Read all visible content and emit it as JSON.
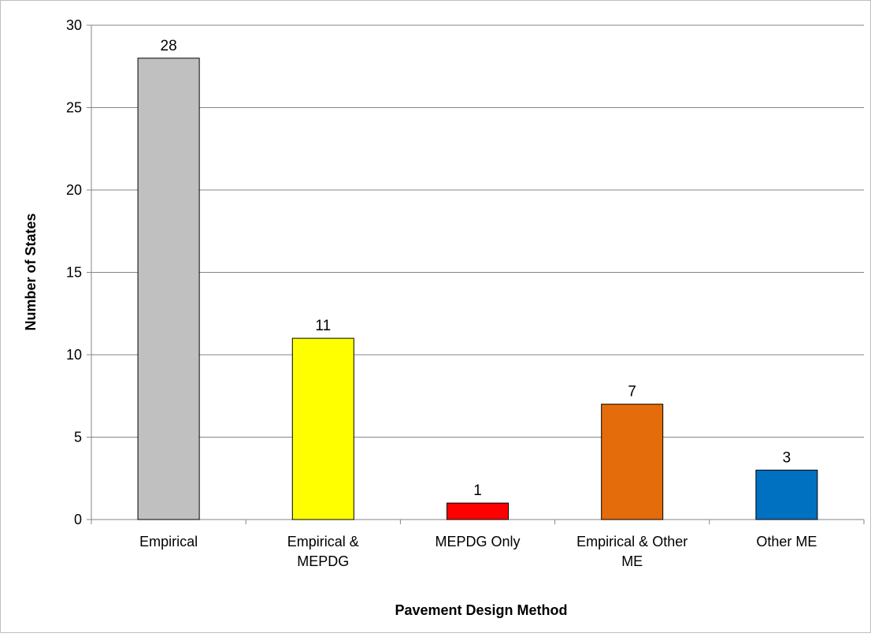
{
  "chart_data": {
    "type": "bar",
    "title": "",
    "xlabel": "Pavement Design Method",
    "ylabel": "Number of States",
    "categories": [
      [
        "Empirical"
      ],
      [
        "Empirical &",
        "MEPDG"
      ],
      [
        "MEPDG Only"
      ],
      [
        "Empirical & Other",
        "ME"
      ],
      [
        "Other ME"
      ]
    ],
    "values": [
      28,
      11,
      1,
      7,
      3
    ],
    "data_labels": [
      "28",
      "11",
      "1",
      "7",
      "3"
    ],
    "bar_colors": [
      "#c0c0c0",
      "#ffff00",
      "#ff0000",
      "#e46c0a",
      "#0070c0"
    ],
    "ylim": [
      0,
      30
    ],
    "yticks": [
      0,
      5,
      10,
      15,
      20,
      25,
      30
    ],
    "grid": true,
    "legend": "none"
  }
}
